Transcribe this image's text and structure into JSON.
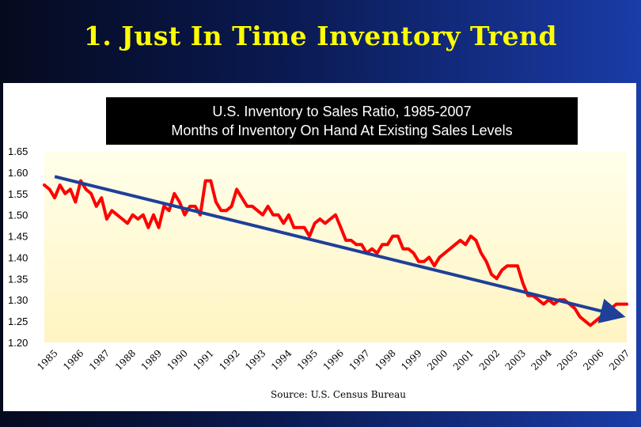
{
  "slide": {
    "title": "1. Just In Time Inventory Trend"
  },
  "chart_data": {
    "type": "line",
    "title": "U.S. Inventory to Sales Ratio, 1985-2007",
    "subtitle": "Months of Inventory On Hand At Existing Sales Levels",
    "source": "Source: U.S. Census Bureau",
    "xlabel": "",
    "ylabel": "",
    "ylim": [
      1.2,
      1.65
    ],
    "y_ticks": [
      "1.20",
      "1.25",
      "1.30",
      "1.35",
      "1.40",
      "1.45",
      "1.50",
      "1.55",
      "1.60",
      "1.65"
    ],
    "x_ticks": [
      "1985",
      "1986",
      "1987",
      "1988",
      "1989",
      "1990",
      "1991",
      "1992",
      "1993",
      "1994",
      "1995",
      "1996",
      "1997",
      "1998",
      "1999",
      "2000",
      "2001",
      "2002",
      "2003",
      "2004",
      "2005",
      "2006",
      "2007"
    ],
    "xlim": [
      1985.0,
      2007.4
    ],
    "series": [
      {
        "name": "Inventory to Sales Ratio",
        "color": "#ff0000",
        "x": [
          1985.0,
          1985.2,
          1985.4,
          1985.6,
          1985.8,
          1986.0,
          1986.2,
          1986.4,
          1986.6,
          1986.8,
          1987.0,
          1987.2,
          1987.4,
          1987.6,
          1987.8,
          1988.0,
          1988.2,
          1988.4,
          1988.6,
          1988.8,
          1989.0,
          1989.2,
          1989.4,
          1989.6,
          1989.8,
          1990.0,
          1990.2,
          1990.4,
          1990.6,
          1990.8,
          1991.0,
          1991.2,
          1991.4,
          1991.6,
          1991.8,
          1992.0,
          1992.2,
          1992.4,
          1992.6,
          1992.8,
          1993.0,
          1993.2,
          1993.4,
          1993.6,
          1993.8,
          1994.0,
          1994.2,
          1994.4,
          1994.6,
          1994.8,
          1995.0,
          1995.2,
          1995.4,
          1995.6,
          1995.8,
          1996.0,
          1996.2,
          1996.4,
          1996.6,
          1996.8,
          1997.0,
          1997.2,
          1997.4,
          1997.6,
          1997.8,
          1998.0,
          1998.2,
          1998.4,
          1998.6,
          1998.8,
          1999.0,
          1999.2,
          1999.4,
          1999.6,
          1999.8,
          2000.0,
          2000.2,
          2000.4,
          2000.6,
          2000.8,
          2001.0,
          2001.2,
          2001.4,
          2001.6,
          2001.8,
          2002.0,
          2002.2,
          2002.4,
          2002.6,
          2002.8,
          2003.0,
          2003.2,
          2003.4,
          2003.6,
          2003.8,
          2004.0,
          2004.2,
          2004.4,
          2004.6,
          2004.8,
          2005.0,
          2005.2,
          2005.4,
          2005.6,
          2005.8,
          2006.0,
          2006.2,
          2006.4,
          2006.6,
          2006.8,
          2007.0,
          2007.2,
          2007.4
        ],
        "values": [
          1.57,
          1.56,
          1.54,
          1.57,
          1.55,
          1.56,
          1.53,
          1.58,
          1.56,
          1.55,
          1.52,
          1.54,
          1.49,
          1.51,
          1.5,
          1.49,
          1.48,
          1.5,
          1.49,
          1.5,
          1.47,
          1.5,
          1.47,
          1.52,
          1.51,
          1.55,
          1.53,
          1.5,
          1.52,
          1.52,
          1.5,
          1.58,
          1.58,
          1.53,
          1.51,
          1.51,
          1.52,
          1.56,
          1.54,
          1.52,
          1.52,
          1.51,
          1.5,
          1.52,
          1.5,
          1.5,
          1.48,
          1.5,
          1.47,
          1.47,
          1.47,
          1.45,
          1.48,
          1.49,
          1.48,
          1.49,
          1.5,
          1.47,
          1.44,
          1.44,
          1.43,
          1.43,
          1.41,
          1.42,
          1.41,
          1.43,
          1.43,
          1.45,
          1.45,
          1.42,
          1.42,
          1.41,
          1.39,
          1.39,
          1.4,
          1.38,
          1.4,
          1.41,
          1.42,
          1.43,
          1.44,
          1.43,
          1.45,
          1.44,
          1.41,
          1.39,
          1.36,
          1.35,
          1.37,
          1.38,
          1.38,
          1.38,
          1.34,
          1.31,
          1.31,
          1.3,
          1.29,
          1.3,
          1.29,
          1.3,
          1.3,
          1.29,
          1.28,
          1.26,
          1.25,
          1.24,
          1.25,
          1.26,
          1.26,
          1.28,
          1.29,
          1.29,
          1.29
        ]
      }
    ],
    "annotations": [
      {
        "type": "trend-arrow",
        "color": "#1f3f99",
        "from": [
          1985.4,
          1.59
        ],
        "to": [
          2007.0,
          1.265
        ]
      }
    ]
  }
}
